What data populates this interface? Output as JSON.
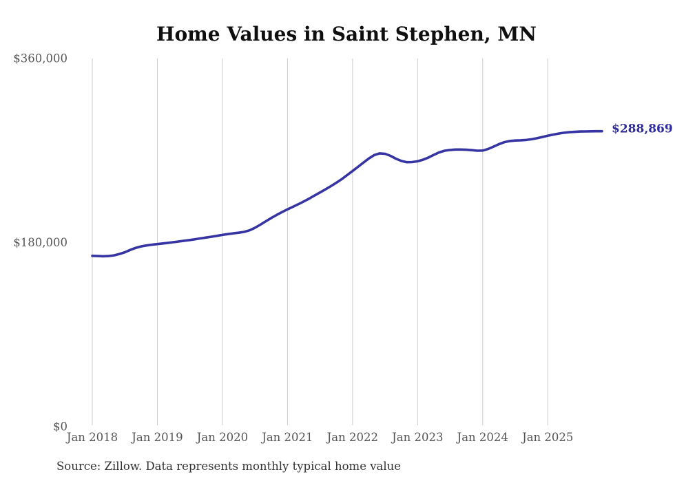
{
  "title": "Home Values in Saint Stephen, MN",
  "source_note": "Source: Zillow. Data represents monthly typical home value",
  "end_label": "$288,869",
  "colors": {
    "line": "#3634a3",
    "end_label": "#2d2b9e",
    "grid": "#cccccc",
    "axis_text": "#555555",
    "title_text": "#0f0f0f",
    "source_text": "#333333",
    "background": "#ffffff"
  },
  "chart_data": {
    "type": "line",
    "title": "Home Values in Saint Stephen, MN",
    "xlabel": "",
    "ylabel": "",
    "ylim": [
      0,
      360000
    ],
    "grid": "vertical-only",
    "legend": "none",
    "x_tick_labels": [
      "Jan 2018",
      "Jan 2019",
      "Jan 2020",
      "Jan 2021",
      "Jan 2022",
      "Jan 2023",
      "Jan 2024",
      "Jan 2025"
    ],
    "y_ticks": [
      {
        "label": "$0",
        "value": 0
      },
      {
        "label": "$180,000",
        "value": 180000
      },
      {
        "label": "$360,000",
        "value": 360000
      }
    ],
    "end_value": 288869,
    "end_value_label": "$288,869",
    "series": [
      {
        "name": "Typical home value (USD)",
        "cadence": "monthly",
        "start_month": "2018-01",
        "end_month": "2025-11",
        "values": [
          167000,
          166800,
          166600,
          166800,
          167500,
          168800,
          170500,
          172800,
          174800,
          176200,
          177200,
          177900,
          178500,
          179100,
          179700,
          180400,
          181100,
          181800,
          182500,
          183300,
          184100,
          184900,
          185700,
          186600,
          187500,
          188300,
          189000,
          189600,
          190400,
          192000,
          194500,
          197500,
          200800,
          204000,
          207000,
          209800,
          212500,
          215000,
          217500,
          220200,
          223000,
          226000,
          229000,
          232000,
          235200,
          238500,
          242000,
          246000,
          250000,
          254000,
          258200,
          262200,
          265500,
          267200,
          266800,
          264800,
          262000,
          259800,
          258600,
          258700,
          259500,
          261000,
          263200,
          265800,
          268200,
          269800,
          270600,
          271000,
          271000,
          270800,
          270400,
          269800,
          270000,
          271500,
          273800,
          276200,
          278200,
          279300,
          279800,
          280000,
          280300,
          281000,
          282000,
          283200,
          284400,
          285600,
          286600,
          287400,
          287900,
          288300,
          288600,
          288700,
          288800,
          288850,
          288869
        ]
      }
    ]
  }
}
